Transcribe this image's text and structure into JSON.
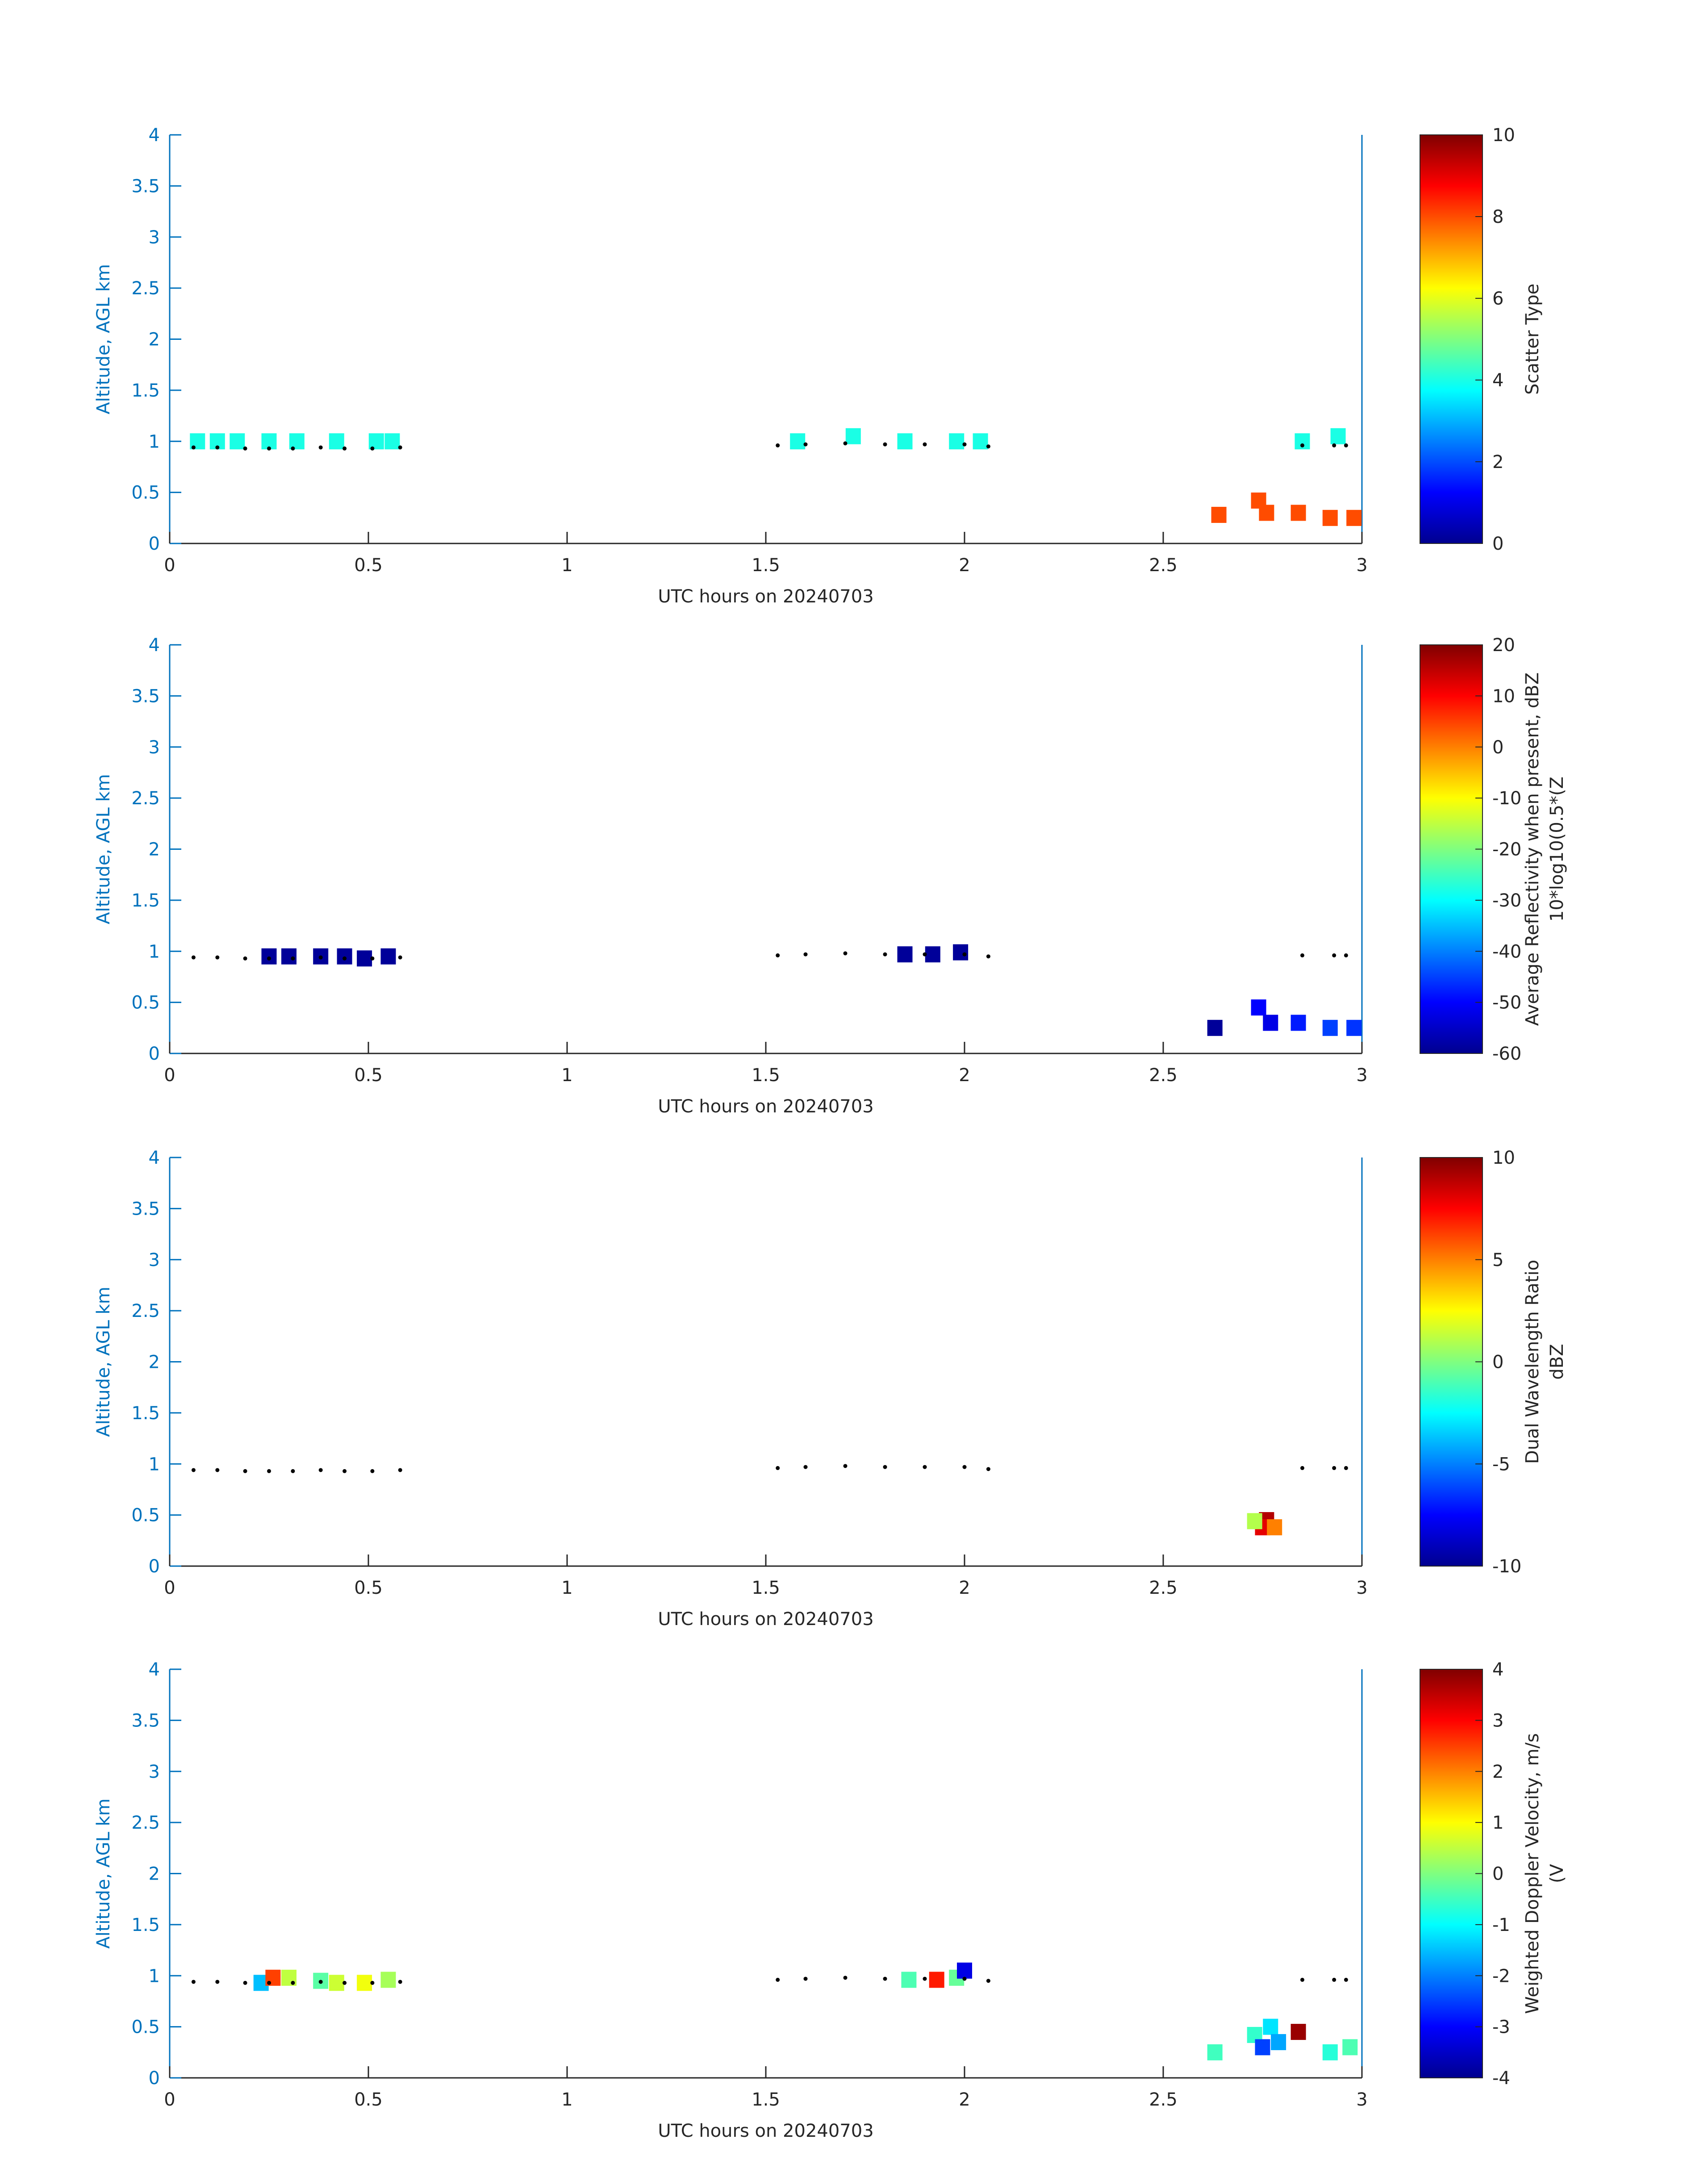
{
  "chart_data": [
    {
      "type": "heatmap",
      "xlabel": "UTC hours on 20240703",
      "ylabel": "Altitude, AGL km",
      "xlim": [
        0,
        3
      ],
      "ylim": [
        0,
        4
      ],
      "xticks": [
        "0",
        "0.5",
        "1",
        "1.5",
        "2",
        "2.5",
        "3"
      ],
      "yticks": [
        "0",
        "0.5",
        "1",
        "1.5",
        "2",
        "2.5",
        "3",
        "3.5",
        "4"
      ],
      "colorbar": {
        "label": "Scatter Type",
        "label2": "",
        "min": 0,
        "max": 10,
        "ticks": [
          "0",
          "2",
          "4",
          "6",
          "8",
          "10"
        ],
        "colormap": "jet"
      },
      "cells": [
        {
          "x": 0.07,
          "y": 1.0,
          "v": 4
        },
        {
          "x": 0.12,
          "y": 1.0,
          "v": 4
        },
        {
          "x": 0.17,
          "y": 1.0,
          "v": 4
        },
        {
          "x": 0.25,
          "y": 1.0,
          "v": 4
        },
        {
          "x": 0.32,
          "y": 1.0,
          "v": 4
        },
        {
          "x": 0.42,
          "y": 1.0,
          "v": 4
        },
        {
          "x": 0.52,
          "y": 1.0,
          "v": 4
        },
        {
          "x": 0.56,
          "y": 1.0,
          "v": 4
        },
        {
          "x": 1.58,
          "y": 1.0,
          "v": 4
        },
        {
          "x": 1.72,
          "y": 1.05,
          "v": 4
        },
        {
          "x": 1.85,
          "y": 1.0,
          "v": 4
        },
        {
          "x": 1.98,
          "y": 1.0,
          "v": 4
        },
        {
          "x": 2.04,
          "y": 1.0,
          "v": 4
        },
        {
          "x": 2.85,
          "y": 1.0,
          "v": 4
        },
        {
          "x": 2.94,
          "y": 1.05,
          "v": 4
        },
        {
          "x": 2.64,
          "y": 0.28,
          "v": 8
        },
        {
          "x": 2.74,
          "y": 0.42,
          "v": 8
        },
        {
          "x": 2.76,
          "y": 0.3,
          "v": 8
        },
        {
          "x": 2.84,
          "y": 0.3,
          "v": 8
        },
        {
          "x": 2.92,
          "y": 0.25,
          "v": 8
        },
        {
          "x": 2.98,
          "y": 0.25,
          "v": 8
        }
      ],
      "dots": [
        {
          "x": 0.06,
          "y": 0.94
        },
        {
          "x": 0.12,
          "y": 0.94
        },
        {
          "x": 0.19,
          "y": 0.93
        },
        {
          "x": 0.25,
          "y": 0.93
        },
        {
          "x": 0.31,
          "y": 0.93
        },
        {
          "x": 0.38,
          "y": 0.94
        },
        {
          "x": 0.44,
          "y": 0.93
        },
        {
          "x": 0.51,
          "y": 0.93
        },
        {
          "x": 0.58,
          "y": 0.94
        },
        {
          "x": 1.53,
          "y": 0.96
        },
        {
          "x": 1.6,
          "y": 0.97
        },
        {
          "x": 1.7,
          "y": 0.98
        },
        {
          "x": 1.8,
          "y": 0.97
        },
        {
          "x": 1.9,
          "y": 0.97
        },
        {
          "x": 2.0,
          "y": 0.97
        },
        {
          "x": 2.06,
          "y": 0.95
        },
        {
          "x": 2.85,
          "y": 0.96
        },
        {
          "x": 2.93,
          "y": 0.96
        },
        {
          "x": 2.96,
          "y": 0.96
        }
      ]
    },
    {
      "type": "heatmap",
      "xlabel": "UTC hours on 20240703",
      "ylabel": "Altitude, AGL km",
      "xlim": [
        0,
        3
      ],
      "ylim": [
        0,
        4
      ],
      "xticks": [
        "0",
        "0.5",
        "1",
        "1.5",
        "2",
        "2.5",
        "3"
      ],
      "yticks": [
        "0",
        "0.5",
        "1",
        "1.5",
        "2",
        "2.5",
        "3",
        "3.5",
        "4"
      ],
      "colorbar": {
        "label": "Average Reflectivity when present, dBZ",
        "label2": "10*log10(0.5*(Z",
        "min": -60,
        "max": 20,
        "ticks": [
          "-60",
          "-50",
          "-40",
          "-30",
          "-20",
          "-10",
          "0",
          "10",
          "20"
        ],
        "colormap": "jet"
      },
      "cells": [
        {
          "x": 0.25,
          "y": 0.95,
          "v": -58
        },
        {
          "x": 0.3,
          "y": 0.95,
          "v": -58
        },
        {
          "x": 0.38,
          "y": 0.95,
          "v": -58
        },
        {
          "x": 0.44,
          "y": 0.95,
          "v": -58
        },
        {
          "x": 0.49,
          "y": 0.93,
          "v": -58
        },
        {
          "x": 0.55,
          "y": 0.95,
          "v": -58
        },
        {
          "x": 1.85,
          "y": 0.97,
          "v": -58
        },
        {
          "x": 1.92,
          "y": 0.97,
          "v": -58
        },
        {
          "x": 1.99,
          "y": 0.99,
          "v": -58
        },
        {
          "x": 2.63,
          "y": 0.25,
          "v": -58
        },
        {
          "x": 2.74,
          "y": 0.45,
          "v": -50
        },
        {
          "x": 2.77,
          "y": 0.3,
          "v": -52
        },
        {
          "x": 2.84,
          "y": 0.3,
          "v": -48
        },
        {
          "x": 2.92,
          "y": 0.25,
          "v": -45
        },
        {
          "x": 2.98,
          "y": 0.25,
          "v": -46
        }
      ],
      "dots": [
        {
          "x": 0.06,
          "y": 0.94
        },
        {
          "x": 0.12,
          "y": 0.94
        },
        {
          "x": 0.19,
          "y": 0.93
        },
        {
          "x": 0.25,
          "y": 0.93
        },
        {
          "x": 0.31,
          "y": 0.93
        },
        {
          "x": 0.38,
          "y": 0.94
        },
        {
          "x": 0.44,
          "y": 0.93
        },
        {
          "x": 0.51,
          "y": 0.93
        },
        {
          "x": 0.58,
          "y": 0.94
        },
        {
          "x": 1.53,
          "y": 0.96
        },
        {
          "x": 1.6,
          "y": 0.97
        },
        {
          "x": 1.7,
          "y": 0.98
        },
        {
          "x": 1.8,
          "y": 0.97
        },
        {
          "x": 1.9,
          "y": 0.97
        },
        {
          "x": 2.0,
          "y": 0.97
        },
        {
          "x": 2.06,
          "y": 0.95
        },
        {
          "x": 2.85,
          "y": 0.96
        },
        {
          "x": 2.93,
          "y": 0.96
        },
        {
          "x": 2.96,
          "y": 0.96
        }
      ]
    },
    {
      "type": "heatmap",
      "xlabel": "UTC hours on 20240703",
      "ylabel": "Altitude, AGL km",
      "xlim": [
        0,
        3
      ],
      "ylim": [
        0,
        4
      ],
      "xticks": [
        "0",
        "0.5",
        "1",
        "1.5",
        "2",
        "2.5",
        "3"
      ],
      "yticks": [
        "0",
        "0.5",
        "1",
        "1.5",
        "2",
        "2.5",
        "3",
        "3.5",
        "4"
      ],
      "colorbar": {
        "label": "Dual Wavelength Ratio",
        "label2": "dBZ",
        "min": -10,
        "max": 10,
        "ticks": [
          "-10",
          "-5",
          "0",
          "5",
          "10"
        ],
        "colormap": "jet"
      },
      "cells": [
        {
          "x": 2.76,
          "y": 0.45,
          "v": 9
        },
        {
          "x": 2.75,
          "y": 0.38,
          "v": 8
        },
        {
          "x": 2.73,
          "y": 0.44,
          "v": 1
        },
        {
          "x": 2.78,
          "y": 0.38,
          "v": 5
        }
      ],
      "dots": [
        {
          "x": 0.06,
          "y": 0.94
        },
        {
          "x": 0.12,
          "y": 0.94
        },
        {
          "x": 0.19,
          "y": 0.93
        },
        {
          "x": 0.25,
          "y": 0.93
        },
        {
          "x": 0.31,
          "y": 0.93
        },
        {
          "x": 0.38,
          "y": 0.94
        },
        {
          "x": 0.44,
          "y": 0.93
        },
        {
          "x": 0.51,
          "y": 0.93
        },
        {
          "x": 0.58,
          "y": 0.94
        },
        {
          "x": 1.53,
          "y": 0.96
        },
        {
          "x": 1.6,
          "y": 0.97
        },
        {
          "x": 1.7,
          "y": 0.98
        },
        {
          "x": 1.8,
          "y": 0.97
        },
        {
          "x": 1.9,
          "y": 0.97
        },
        {
          "x": 2.0,
          "y": 0.97
        },
        {
          "x": 2.06,
          "y": 0.95
        },
        {
          "x": 2.85,
          "y": 0.96
        },
        {
          "x": 2.93,
          "y": 0.96
        },
        {
          "x": 2.96,
          "y": 0.96
        }
      ]
    },
    {
      "type": "heatmap",
      "xlabel": "UTC hours on 20240703",
      "ylabel": "Altitude, AGL km",
      "xlim": [
        0,
        3
      ],
      "ylim": [
        0,
        4
      ],
      "xticks": [
        "0",
        "0.5",
        "1",
        "1.5",
        "2",
        "2.5",
        "3"
      ],
      "yticks": [
        "0",
        "0.5",
        "1",
        "1.5",
        "2",
        "2.5",
        "3",
        "3.5",
        "4"
      ],
      "colorbar": {
        "label": "Weighted Doppler Velocity, m/s",
        "label2": "(V",
        "min": -4,
        "max": 4,
        "ticks": [
          "-4",
          "-3",
          "-2",
          "-1",
          "0",
          "1",
          "2",
          "3",
          "4"
        ],
        "colormap": "jet"
      },
      "cells": [
        {
          "x": 0.23,
          "y": 0.93,
          "v": -1.5
        },
        {
          "x": 0.26,
          "y": 0.98,
          "v": 2.5
        },
        {
          "x": 0.3,
          "y": 0.98,
          "v": 0.5
        },
        {
          "x": 0.38,
          "y": 0.95,
          "v": -0.3
        },
        {
          "x": 0.42,
          "y": 0.93,
          "v": 0.6
        },
        {
          "x": 0.49,
          "y": 0.93,
          "v": 0.9
        },
        {
          "x": 0.55,
          "y": 0.96,
          "v": 0.3
        },
        {
          "x": 1.86,
          "y": 0.96,
          "v": -0.4
        },
        {
          "x": 1.93,
          "y": 0.96,
          "v": 2.8
        },
        {
          "x": 1.98,
          "y": 0.98,
          "v": -0.2
        },
        {
          "x": 2.0,
          "y": 1.05,
          "v": -3.2
        },
        {
          "x": 2.63,
          "y": 0.25,
          "v": -0.5
        },
        {
          "x": 2.73,
          "y": 0.42,
          "v": -0.6
        },
        {
          "x": 2.77,
          "y": 0.5,
          "v": -1.2
        },
        {
          "x": 2.75,
          "y": 0.3,
          "v": -2.5
        },
        {
          "x": 2.79,
          "y": 0.35,
          "v": -1.7
        },
        {
          "x": 2.84,
          "y": 0.45,
          "v": 3.8
        },
        {
          "x": 2.92,
          "y": 0.25,
          "v": -0.7
        },
        {
          "x": 2.97,
          "y": 0.3,
          "v": -0.4
        }
      ],
      "dots": [
        {
          "x": 0.06,
          "y": 0.94
        },
        {
          "x": 0.12,
          "y": 0.94
        },
        {
          "x": 0.19,
          "y": 0.93
        },
        {
          "x": 0.25,
          "y": 0.93
        },
        {
          "x": 0.31,
          "y": 0.93
        },
        {
          "x": 0.38,
          "y": 0.94
        },
        {
          "x": 0.44,
          "y": 0.93
        },
        {
          "x": 0.51,
          "y": 0.93
        },
        {
          "x": 0.58,
          "y": 0.94
        },
        {
          "x": 1.53,
          "y": 0.96
        },
        {
          "x": 1.6,
          "y": 0.97
        },
        {
          "x": 1.7,
          "y": 0.98
        },
        {
          "x": 1.8,
          "y": 0.97
        },
        {
          "x": 1.9,
          "y": 0.97
        },
        {
          "x": 2.0,
          "y": 0.97
        },
        {
          "x": 2.06,
          "y": 0.95
        },
        {
          "x": 2.85,
          "y": 0.96
        },
        {
          "x": 2.93,
          "y": 0.96
        },
        {
          "x": 2.96,
          "y": 0.96
        }
      ]
    }
  ]
}
